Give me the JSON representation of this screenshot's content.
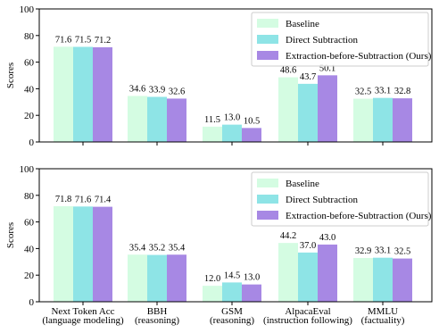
{
  "chart_data": [
    {
      "type": "bar",
      "ylabel": "Scores",
      "ylim": [
        0,
        100
      ],
      "yticks": [
        0,
        20,
        40,
        60,
        80,
        100
      ],
      "categories": [
        [
          "Next Token Acc",
          "(language modeling)"
        ],
        [
          "BBH",
          "(reasoning)"
        ],
        [
          "GSM",
          "(reasoning)"
        ],
        [
          "AlpacaEval",
          "(instruction following)"
        ],
        [
          "MMLU",
          "(factuality)"
        ]
      ],
      "series": [
        {
          "name": "Baseline",
          "color": "#d4fce2",
          "values": [
            71.6,
            34.6,
            11.5,
            48.6,
            32.5
          ]
        },
        {
          "name": "Direct Subtraction",
          "color": "#8ee4e6",
          "values": [
            71.5,
            33.9,
            13.0,
            43.7,
            33.1
          ]
        },
        {
          "name": "Extraction-before-Subtraction (Ours)",
          "color": "#a788e4",
          "values": [
            71.2,
            32.6,
            10.5,
            50.1,
            32.8
          ]
        }
      ],
      "legend": "top-right",
      "grid": false
    },
    {
      "type": "bar",
      "ylabel": "Scores",
      "ylim": [
        0,
        100
      ],
      "yticks": [
        0,
        20,
        40,
        60,
        80,
        100
      ],
      "categories": [
        [
          "Next Token Acc",
          "(language modeling)"
        ],
        [
          "BBH",
          "(reasoning)"
        ],
        [
          "GSM",
          "(reasoning)"
        ],
        [
          "AlpacaEval",
          "(instruction following)"
        ],
        [
          "MMLU",
          "(factuality)"
        ]
      ],
      "series": [
        {
          "name": "Baseline",
          "color": "#d4fce2",
          "values": [
            71.8,
            35.4,
            12.0,
            44.2,
            32.9
          ]
        },
        {
          "name": "Direct Subtraction",
          "color": "#8ee4e6",
          "values": [
            71.6,
            35.2,
            14.5,
            37.0,
            33.1
          ]
        },
        {
          "name": "Extraction-before-Subtraction (Ours)",
          "color": "#a788e4",
          "values": [
            71.4,
            35.4,
            13.0,
            43.0,
            32.5
          ]
        }
      ],
      "legend": "top-right",
      "grid": false
    }
  ]
}
